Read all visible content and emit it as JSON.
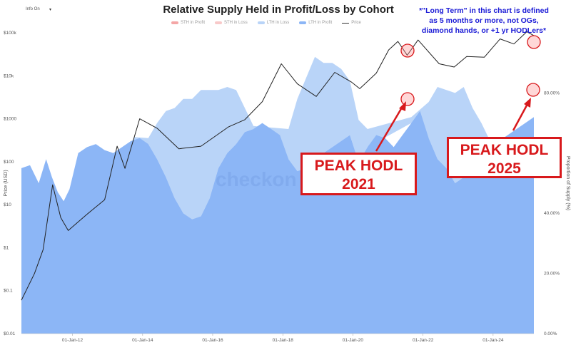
{
  "header": {
    "toolbar_label": "Info On",
    "toolbar_caret": "▾"
  },
  "annotations": {
    "note_line1": "*\"Long Term\" in this chart is defined",
    "note_line2": "as 5 months or more, not OGs,",
    "note_line3": "diamond hands, or +1 yr HODLers*",
    "peak2021_line1": "PEAK HODL",
    "peak2021_line2": "2021",
    "peak2025_line1": "PEAK HODL",
    "peak2025_line2": "2025",
    "watermark": "checkon",
    "highlight_color": "#d8191c",
    "note_color": "#1a1ad6"
  },
  "chart_data": {
    "type": "area",
    "title": "Relative Supply Held in Profit/Loss by Cohort",
    "legend": [
      {
        "name": "STH in Profit",
        "color": "#f4a6a6"
      },
      {
        "name": "STH in Loss",
        "color": "#f8c9c9"
      },
      {
        "name": "LTH in Loss",
        "color": "#b9d4f8"
      },
      {
        "name": "LTH in Profit",
        "color": "#8cb6f6"
      },
      {
        "name": "Price",
        "color": "#222222"
      }
    ],
    "legend_position": "top-center",
    "x_ticks": [
      "01-Jan-12",
      "01-Jan-14",
      "01-Jan-16",
      "01-Jan-18",
      "01-Jan-20",
      "01-Jan-22",
      "01-Jan-24"
    ],
    "x_range": [
      "2010-07-18",
      "2025-03-01"
    ],
    "ylabel_left": "Price (USD)",
    "ylabel_right": "Proportion of Supply (%)",
    "y_left_ticks": [
      "$0.01",
      "$0.1",
      "$1",
      "$10",
      "$100",
      "$1000",
      "$10k",
      "$100k"
    ],
    "y_left_scale": "log",
    "y_left_range": [
      0.01,
      100000
    ],
    "y_right_ticks": [
      "0.00%",
      "20.00%",
      "40.00%",
      "60.00%",
      "80.00%"
    ],
    "y_right_range": [
      0,
      100
    ],
    "grid": false,
    "series": [
      {
        "name": "LTH in Profit",
        "unit": "percent",
        "x": [
          "2010-07-18",
          "2010-10-15",
          "2011-01-15",
          "2011-04-01",
          "2011-06-01",
          "2011-08-01",
          "2011-10-01",
          "2011-12-01",
          "2012-03-01",
          "2012-06-01",
          "2012-09-01",
          "2012-12-01",
          "2013-03-01",
          "2013-06-01",
          "2013-09-01",
          "2013-12-01",
          "2014-03-01",
          "2014-06-01",
          "2014-09-01",
          "2014-12-01",
          "2015-03-01",
          "2015-06-01",
          "2015-09-01",
          "2015-12-01",
          "2016-03-01",
          "2016-06-01",
          "2016-09-01",
          "2016-12-01",
          "2017-03-01",
          "2017-06-01",
          "2017-09-01",
          "2017-12-01",
          "2018-03-01",
          "2018-06-01",
          "2018-09-01",
          "2018-12-01",
          "2019-03-01",
          "2019-06-01",
          "2019-09-01",
          "2019-12-01",
          "2020-03-01",
          "2020-06-01",
          "2020-09-01",
          "2020-12-01",
          "2021-03-01",
          "2021-06-01",
          "2021-09-01",
          "2021-12-01",
          "2022-03-01",
          "2022-06-01",
          "2022-09-01",
          "2022-12-01",
          "2023-03-01",
          "2023-06-01",
          "2023-09-01",
          "2023-12-01",
          "2024-03-01",
          "2024-06-01",
          "2024-09-01",
          "2024-12-01",
          "2025-03-01"
        ],
        "values": [
          55,
          56,
          50,
          58,
          52,
          47,
          44,
          48,
          60,
          62,
          63,
          61,
          60,
          62,
          64,
          65,
          63,
          58,
          52,
          45,
          40,
          38,
          39,
          45,
          55,
          60,
          63,
          67,
          68,
          70,
          68,
          66,
          58,
          54,
          55,
          58,
          60,
          62,
          64,
          66,
          57,
          62,
          66,
          65,
          62,
          66,
          70,
          74,
          65,
          58,
          55,
          50,
          52,
          55,
          58,
          62,
          64,
          66,
          68,
          70,
          72
        ]
      },
      {
        "name": "LTH in Loss",
        "unit": "percent",
        "x": [
          "2013-10-01",
          "2014-03-01",
          "2014-06-01",
          "2014-09-01",
          "2014-12-01",
          "2015-03-01",
          "2015-06-01",
          "2015-09-01",
          "2015-12-01",
          "2016-03-01",
          "2016-06-01",
          "2016-09-01",
          "2016-12-01",
          "2017-03-01",
          "2018-03-01",
          "2018-06-01",
          "2018-09-01",
          "2018-12-01",
          "2019-03-01",
          "2019-06-01",
          "2019-09-01",
          "2019-12-01",
          "2020-03-01",
          "2020-06-01",
          "2021-09-01",
          "2022-03-01",
          "2022-06-01",
          "2022-09-01",
          "2022-12-01",
          "2023-03-01",
          "2023-06-01",
          "2023-09-01",
          "2023-12-01"
        ],
        "values": [
          1,
          2,
          12,
          22,
          30,
          38,
          40,
          42,
          36,
          26,
          22,
          18,
          8,
          1,
          10,
          24,
          30,
          34,
          30,
          28,
          24,
          18,
          14,
          6,
          2,
          12,
          24,
          26,
          30,
          30,
          20,
          12,
          2
        ]
      },
      {
        "name": "Price",
        "unit": "USD",
        "x": [
          "2010-07-18",
          "2010-12-01",
          "2011-03-01",
          "2011-06-08",
          "2011-09-01",
          "2011-11-18",
          "2012-06-01",
          "2012-12-01",
          "2013-04-10",
          "2013-07-01",
          "2013-12-01",
          "2014-06-01",
          "2015-01-14",
          "2015-09-01",
          "2016-06-15",
          "2016-12-01",
          "2017-06-01",
          "2017-12-17",
          "2018-06-01",
          "2018-12-15",
          "2019-06-26",
          "2019-12-15",
          "2020-03-12",
          "2020-09-01",
          "2021-01-08",
          "2021-04-14",
          "2021-07-20",
          "2021-11-10",
          "2022-06-18",
          "2022-11-21",
          "2023-04-01",
          "2023-10-01",
          "2024-03-14",
          "2024-08-05",
          "2024-12-17",
          "2025-03-01"
        ],
        "values": [
          0.06,
          0.25,
          0.9,
          29,
          5,
          2.5,
          6,
          13,
          230,
          70,
          1000,
          600,
          200,
          230,
          650,
          950,
          2500,
          19000,
          6500,
          3300,
          12000,
          7200,
          5000,
          11500,
          40000,
          63000,
          30000,
          68000,
          19000,
          16000,
          28000,
          27000,
          72000,
          55000,
          106000,
          86000
        ]
      }
    ]
  }
}
